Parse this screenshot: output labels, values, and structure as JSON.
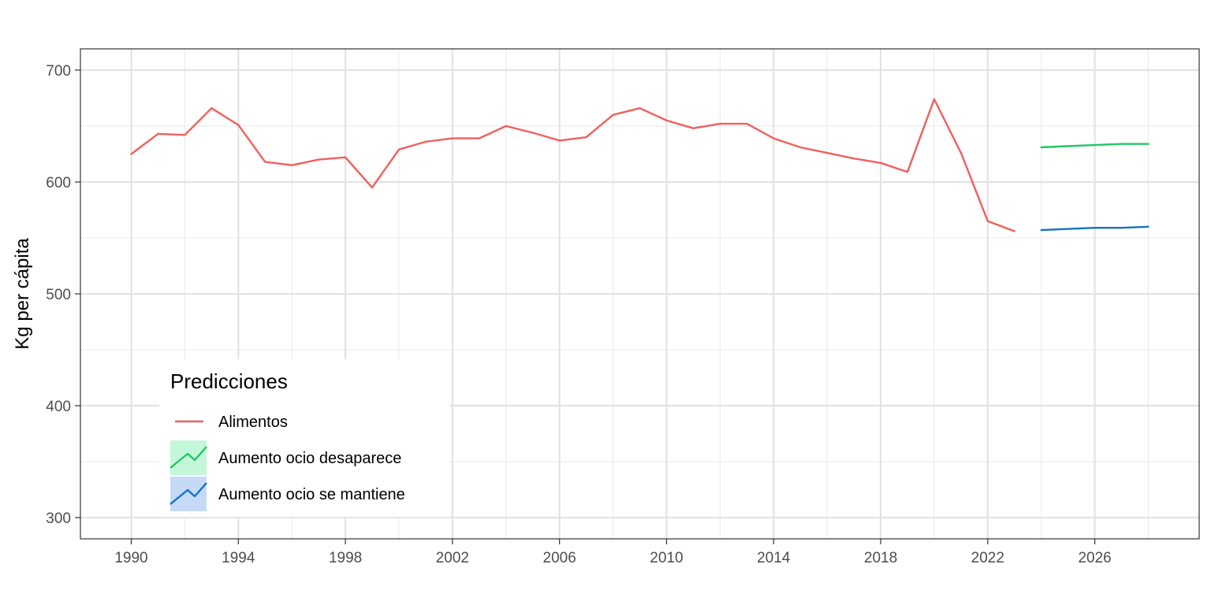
{
  "chart_data": {
    "type": "line",
    "title": "",
    "xlabel": "",
    "ylabel": "Kg per cápita",
    "xlim": [
      1988.1,
      2029.9
    ],
    "ylim": [
      281,
      719
    ],
    "x_ticks": [
      1990,
      1994,
      1998,
      2002,
      2006,
      2010,
      2014,
      2018,
      2022,
      2026
    ],
    "y_ticks": [
      300,
      400,
      500,
      600,
      700
    ],
    "grid": true,
    "legend": {
      "title": "Predicciones",
      "position": "bottom-left",
      "entries": [
        "Alimentos",
        "Aumento ocio desaparece",
        "Aumento ocio se mantiene"
      ]
    },
    "series": [
      {
        "name": "Alimentos",
        "color": "#f0605c",
        "x": [
          1990,
          1991,
          1992,
          1993,
          1994,
          1995,
          1996,
          1997,
          1998,
          1999,
          2000,
          2001,
          2002,
          2003,
          2004,
          2005,
          2006,
          2007,
          2008,
          2009,
          2010,
          2011,
          2012,
          2013,
          2014,
          2015,
          2016,
          2017,
          2018,
          2019,
          2020,
          2021,
          2022,
          2023
        ],
        "values": [
          625,
          643,
          642,
          666,
          651,
          618,
          615,
          620,
          622,
          595,
          629,
          636,
          639,
          639,
          650,
          644,
          637,
          640,
          660,
          666,
          655,
          648,
          652,
          652,
          639,
          631,
          626,
          621,
          617,
          609,
          674,
          626,
          565,
          556
        ]
      },
      {
        "name": "Aumento ocio desaparece",
        "color": "#22c766",
        "band": "#c4f7d9",
        "x": [
          2024,
          2025,
          2026,
          2027,
          2028
        ],
        "values": [
          631,
          632,
          633,
          634,
          634
        ]
      },
      {
        "name": "Aumento ocio se mantiene",
        "color": "#1173c4",
        "band": "#c6daf7",
        "x": [
          2024,
          2025,
          2026,
          2027,
          2028
        ],
        "values": [
          557,
          558,
          559,
          559,
          560
        ]
      }
    ]
  }
}
